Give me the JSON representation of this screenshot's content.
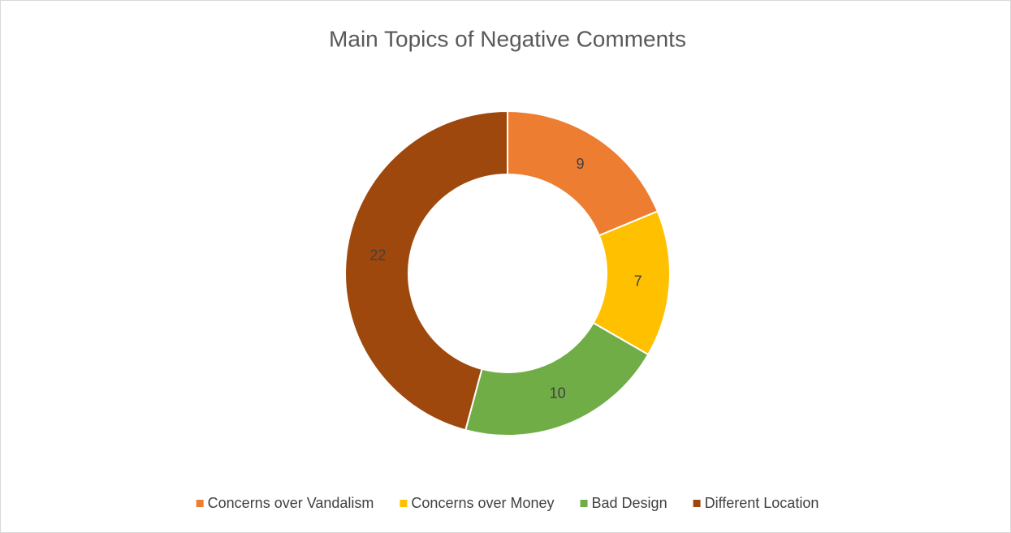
{
  "chart_data": {
    "type": "doughnut",
    "title": "Main Topics of Negative Comments",
    "categories": [
      "Concerns over Vandalism",
      "Concerns over Money",
      "Bad Design",
      "Different Location"
    ],
    "values": [
      9,
      7,
      10,
      22
    ],
    "colors": [
      "#ED7D31",
      "#FFC000",
      "#70AD47",
      "#9E480E"
    ],
    "legend": "bottom"
  }
}
